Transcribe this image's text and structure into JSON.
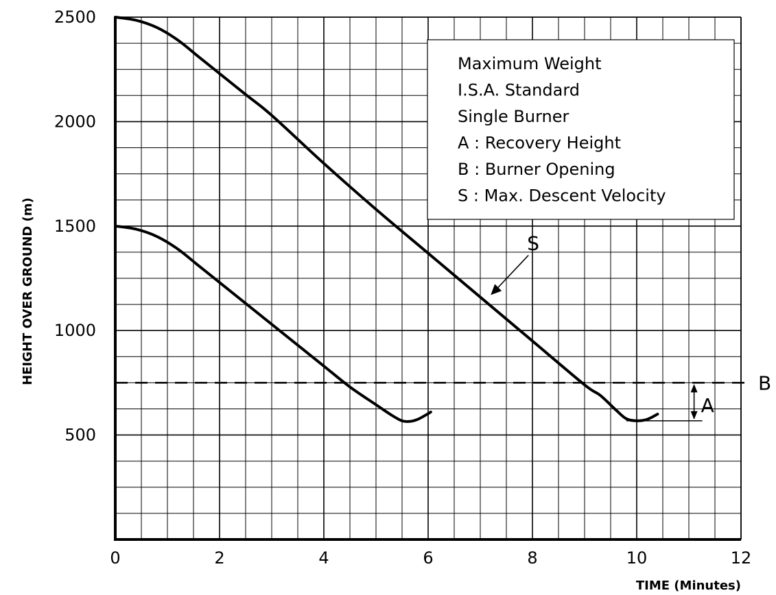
{
  "chart_data": {
    "type": "line",
    "xlabel": "TIME (Minutes)",
    "ylabel": "HEIGHT OVER GROUND  (m)",
    "xlim": [
      0,
      12
    ],
    "ylim": [
      0,
      2500
    ],
    "x_ticks": [
      0,
      2,
      4,
      6,
      8,
      10,
      12
    ],
    "y_ticks": [
      500,
      1000,
      1500,
      2000,
      2500
    ],
    "x_tick_labels": [
      "0",
      "2",
      "4",
      "6",
      "8",
      "10",
      "12"
    ],
    "y_tick_labels": [
      "500",
      "1000",
      "1500",
      "2000",
      "2500"
    ],
    "grid": true,
    "grid_minor_x": 0.5,
    "grid_minor_y": 125,
    "series": [
      {
        "x": [
          0,
          0.4,
          0.8,
          1.2,
          1.6,
          2,
          2.5,
          3,
          3.5,
          4,
          4.5,
          5,
          5.3,
          5.5,
          5.65,
          5.8,
          5.95,
          6.05
        ],
        "y": [
          1500,
          1485,
          1450,
          1390,
          1310,
          1230,
          1130,
          1030,
          930,
          830,
          730,
          645,
          595,
          568,
          565,
          575,
          595,
          610
        ]
      },
      {
        "x": [
          0,
          0.4,
          0.8,
          1.2,
          1.6,
          2,
          2.5,
          3,
          4,
          5,
          6,
          7,
          8,
          9,
          9.3,
          9.6,
          9.8,
          10,
          10.2,
          10.4
        ],
        "y": [
          2500,
          2485,
          2450,
          2390,
          2310,
          2230,
          2130,
          2030,
          1800,
          1580,
          1370,
          1160,
          950,
          740,
          690,
          620,
          578,
          568,
          575,
          600
        ]
      }
    ],
    "reference_line": {
      "label": "B",
      "y": 750,
      "style": "dashed"
    },
    "legend": {
      "placement": "top-right",
      "lines": [
        "Maximum Weight",
        "I.S.A. Standard",
        "Single Burner",
        "A : Recovery Height",
        "B : Burner Opening",
        "S : Max. Descent Velocity"
      ]
    },
    "annotations": [
      {
        "text": "S",
        "points_to": {
          "x": 7.2,
          "y": 1170
        }
      },
      {
        "text": "A",
        "from_y": 568,
        "to_y": 750,
        "at_x": 11.1
      }
    ]
  }
}
